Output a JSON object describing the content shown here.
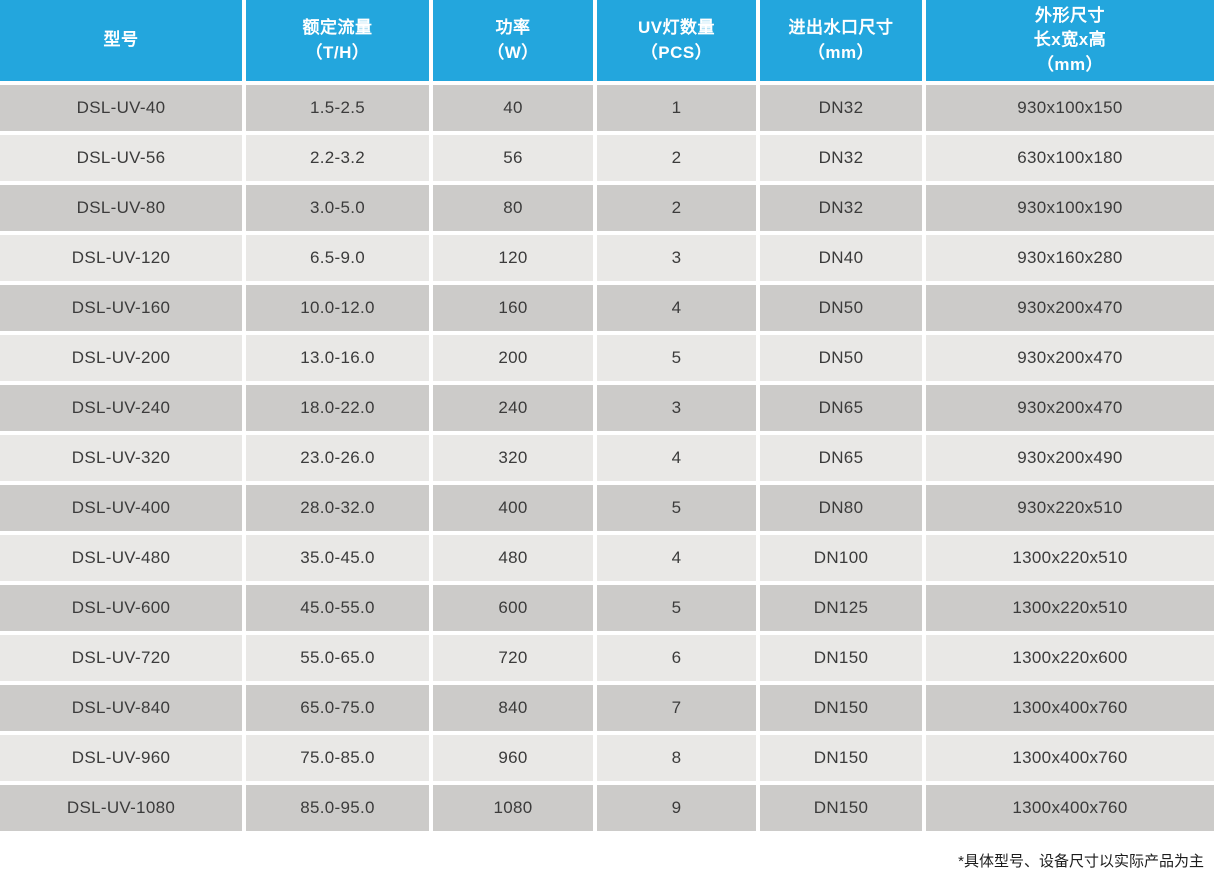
{
  "table": {
    "columns": [
      "型号",
      "额定流量\n（T/H）",
      "功率\n（W）",
      "UV灯数量\n（PCS）",
      "进出水口尺寸\n（mm）",
      "外形尺寸\n长x宽x高\n（mm）"
    ],
    "rows": [
      [
        "DSL-UV-40",
        "1.5-2.5",
        "40",
        "1",
        "DN32",
        "930x100x150"
      ],
      [
        "DSL-UV-56",
        "2.2-3.2",
        "56",
        "2",
        "DN32",
        "630x100x180"
      ],
      [
        "DSL-UV-80",
        "3.0-5.0",
        "80",
        "2",
        "DN32",
        "930x100x190"
      ],
      [
        "DSL-UV-120",
        "6.5-9.0",
        "120",
        "3",
        "DN40",
        "930x160x280"
      ],
      [
        "DSL-UV-160",
        "10.0-12.0",
        "160",
        "4",
        "DN50",
        "930x200x470"
      ],
      [
        "DSL-UV-200",
        "13.0-16.0",
        "200",
        "5",
        "DN50",
        "930x200x470"
      ],
      [
        "DSL-UV-240",
        "18.0-22.0",
        "240",
        "3",
        "DN65",
        "930x200x470"
      ],
      [
        "DSL-UV-320",
        "23.0-26.0",
        "320",
        "4",
        "DN65",
        "930x200x490"
      ],
      [
        "DSL-UV-400",
        "28.0-32.0",
        "400",
        "5",
        "DN80",
        "930x220x510"
      ],
      [
        "DSL-UV-480",
        "35.0-45.0",
        "480",
        "4",
        "DN100",
        "1300x220x510"
      ],
      [
        "DSL-UV-600",
        "45.0-55.0",
        "600",
        "5",
        "DN125",
        "1300x220x510"
      ],
      [
        "DSL-UV-720",
        "55.0-65.0",
        "720",
        "6",
        "DN150",
        "1300x220x600"
      ],
      [
        "DSL-UV-840",
        "65.0-75.0",
        "840",
        "7",
        "DN150",
        "1300x400x760"
      ],
      [
        "DSL-UV-960",
        "75.0-85.0",
        "960",
        "8",
        "DN150",
        "1300x400x760"
      ],
      [
        "DSL-UV-1080",
        "85.0-95.0",
        "1080",
        "9",
        "DN150",
        "1300x400x760"
      ]
    ]
  },
  "chart_data": {
    "type": "table",
    "title": "",
    "columns": [
      "型号",
      "额定流量（T/H）",
      "功率（W）",
      "UV灯数量（PCS）",
      "进出水口尺寸（mm）",
      "外形尺寸 长x宽x高（mm）"
    ],
    "rows": [
      [
        "DSL-UV-40",
        "1.5-2.5",
        40,
        1,
        "DN32",
        "930x100x150"
      ],
      [
        "DSL-UV-56",
        "2.2-3.2",
        56,
        2,
        "DN32",
        "630x100x180"
      ],
      [
        "DSL-UV-80",
        "3.0-5.0",
        80,
        2,
        "DN32",
        "930x100x190"
      ],
      [
        "DSL-UV-120",
        "6.5-9.0",
        120,
        3,
        "DN40",
        "930x160x280"
      ],
      [
        "DSL-UV-160",
        "10.0-12.0",
        160,
        4,
        "DN50",
        "930x200x470"
      ],
      [
        "DSL-UV-200",
        "13.0-16.0",
        200,
        5,
        "DN50",
        "930x200x470"
      ],
      [
        "DSL-UV-240",
        "18.0-22.0",
        240,
        3,
        "DN65",
        "930x200x470"
      ],
      [
        "DSL-UV-320",
        "23.0-26.0",
        320,
        4,
        "DN65",
        "930x200x490"
      ],
      [
        "DSL-UV-400",
        "28.0-32.0",
        400,
        5,
        "DN80",
        "930x220x510"
      ],
      [
        "DSL-UV-480",
        "35.0-45.0",
        480,
        4,
        "DN100",
        "1300x220x510"
      ],
      [
        "DSL-UV-600",
        "45.0-55.0",
        600,
        5,
        "DN125",
        "1300x220x510"
      ],
      [
        "DSL-UV-720",
        "55.0-65.0",
        720,
        6,
        "DN150",
        "1300x220x600"
      ],
      [
        "DSL-UV-840",
        "65.0-75.0",
        840,
        7,
        "DN150",
        "1300x400x760"
      ],
      [
        "DSL-UV-960",
        "75.0-85.0",
        960,
        8,
        "DN150",
        "1300x400x760"
      ],
      [
        "DSL-UV-1080",
        "85.0-95.0",
        1080,
        9,
        "DN150",
        "1300x400x760"
      ]
    ]
  },
  "footnote": "*具体型号、设备尺寸以实际产品为主",
  "colors": {
    "header_bg": "#23a6dd",
    "header_text": "#ffffff",
    "row_dark": "#cccbc9",
    "row_light": "#e9e8e6",
    "body_text": "#3b3b3b",
    "separator": "#ffffff"
  }
}
